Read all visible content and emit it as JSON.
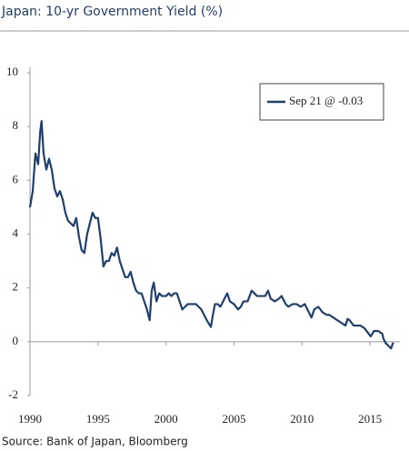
{
  "chart_data": {
    "type": "line",
    "title": "Japan: 10-yr Government Yield (%)",
    "source": "Source: Bank of Japan, Bloomberg",
    "x": [
      1990.0,
      1990.2,
      1990.4,
      1990.6,
      1990.75,
      1990.85,
      1991.0,
      1991.2,
      1991.4,
      1991.6,
      1991.8,
      1992.0,
      1992.2,
      1992.4,
      1992.6,
      1992.8,
      1993.0,
      1993.2,
      1993.4,
      1993.6,
      1993.8,
      1994.0,
      1994.2,
      1994.4,
      1994.6,
      1994.8,
      1995.0,
      1995.2,
      1995.4,
      1995.6,
      1995.8,
      1996.0,
      1996.2,
      1996.4,
      1996.6,
      1996.8,
      1997.0,
      1997.2,
      1997.4,
      1997.6,
      1997.8,
      1998.0,
      1998.2,
      1998.4,
      1998.6,
      1998.8,
      1998.95,
      1999.1,
      1999.3,
      1999.5,
      1999.7,
      2000.0,
      2000.2,
      2000.4,
      2000.6,
      2000.8,
      2001.0,
      2001.2,
      2001.4,
      2001.6,
      2001.8,
      2002.0,
      2002.2,
      2002.4,
      2002.6,
      2002.8,
      2003.0,
      2003.3,
      2003.45,
      2003.6,
      2003.8,
      2004.0,
      2004.3,
      2004.5,
      2004.7,
      2005.0,
      2005.3,
      2005.5,
      2005.7,
      2006.0,
      2006.3,
      2006.5,
      2006.7,
      2007.0,
      2007.3,
      2007.5,
      2007.7,
      2008.0,
      2008.3,
      2008.5,
      2008.8,
      2009.0,
      2009.3,
      2009.6,
      2009.9,
      2010.2,
      2010.5,
      2010.7,
      2010.9,
      2011.2,
      2011.5,
      2011.8,
      2012.0,
      2012.3,
      2012.6,
      2012.9,
      2013.2,
      2013.35,
      2013.5,
      2013.8,
      2014.0,
      2014.3,
      2014.6,
      2014.9,
      2015.05,
      2015.3,
      2015.6,
      2015.9,
      2016.0,
      2016.15,
      2016.35,
      2016.55,
      2016.65,
      2016.72
    ],
    "series": [
      {
        "name": "Sep 21 @ -0.03",
        "color": "#1f3f6e",
        "values": [
          5.0,
          5.6,
          7.0,
          6.6,
          7.8,
          8.2,
          7.0,
          6.4,
          6.8,
          6.4,
          5.7,
          5.4,
          5.6,
          5.3,
          4.8,
          4.5,
          4.4,
          4.3,
          4.6,
          3.9,
          3.4,
          3.3,
          4.0,
          4.4,
          4.8,
          4.6,
          4.6,
          3.8,
          2.8,
          3.0,
          3.0,
          3.3,
          3.2,
          3.5,
          3.0,
          2.7,
          2.4,
          2.4,
          2.6,
          2.2,
          1.9,
          1.8,
          1.8,
          1.5,
          1.2,
          0.8,
          1.9,
          2.2,
          1.5,
          1.8,
          1.7,
          1.7,
          1.8,
          1.7,
          1.8,
          1.8,
          1.5,
          1.2,
          1.3,
          1.4,
          1.4,
          1.4,
          1.4,
          1.3,
          1.2,
          1.0,
          0.8,
          0.55,
          1.0,
          1.4,
          1.4,
          1.3,
          1.6,
          1.8,
          1.5,
          1.4,
          1.2,
          1.3,
          1.5,
          1.5,
          1.9,
          1.8,
          1.7,
          1.7,
          1.7,
          1.9,
          1.6,
          1.5,
          1.6,
          1.7,
          1.4,
          1.3,
          1.4,
          1.4,
          1.3,
          1.4,
          1.1,
          0.9,
          1.2,
          1.3,
          1.1,
          1.0,
          1.0,
          0.9,
          0.8,
          0.7,
          0.6,
          0.85,
          0.8,
          0.6,
          0.6,
          0.6,
          0.5,
          0.3,
          0.2,
          0.4,
          0.4,
          0.3,
          0.1,
          -0.05,
          -0.15,
          -0.25,
          -0.1,
          -0.03
        ]
      }
    ],
    "xlim": [
      1990,
      2017.2
    ],
    "xticks": [
      1990,
      1995,
      2000,
      2005,
      2010,
      2015
    ],
    "ylim": [
      -2,
      10
    ],
    "yticks": [
      -2,
      0,
      2,
      4,
      6,
      8,
      10
    ],
    "legend": "upper right"
  }
}
